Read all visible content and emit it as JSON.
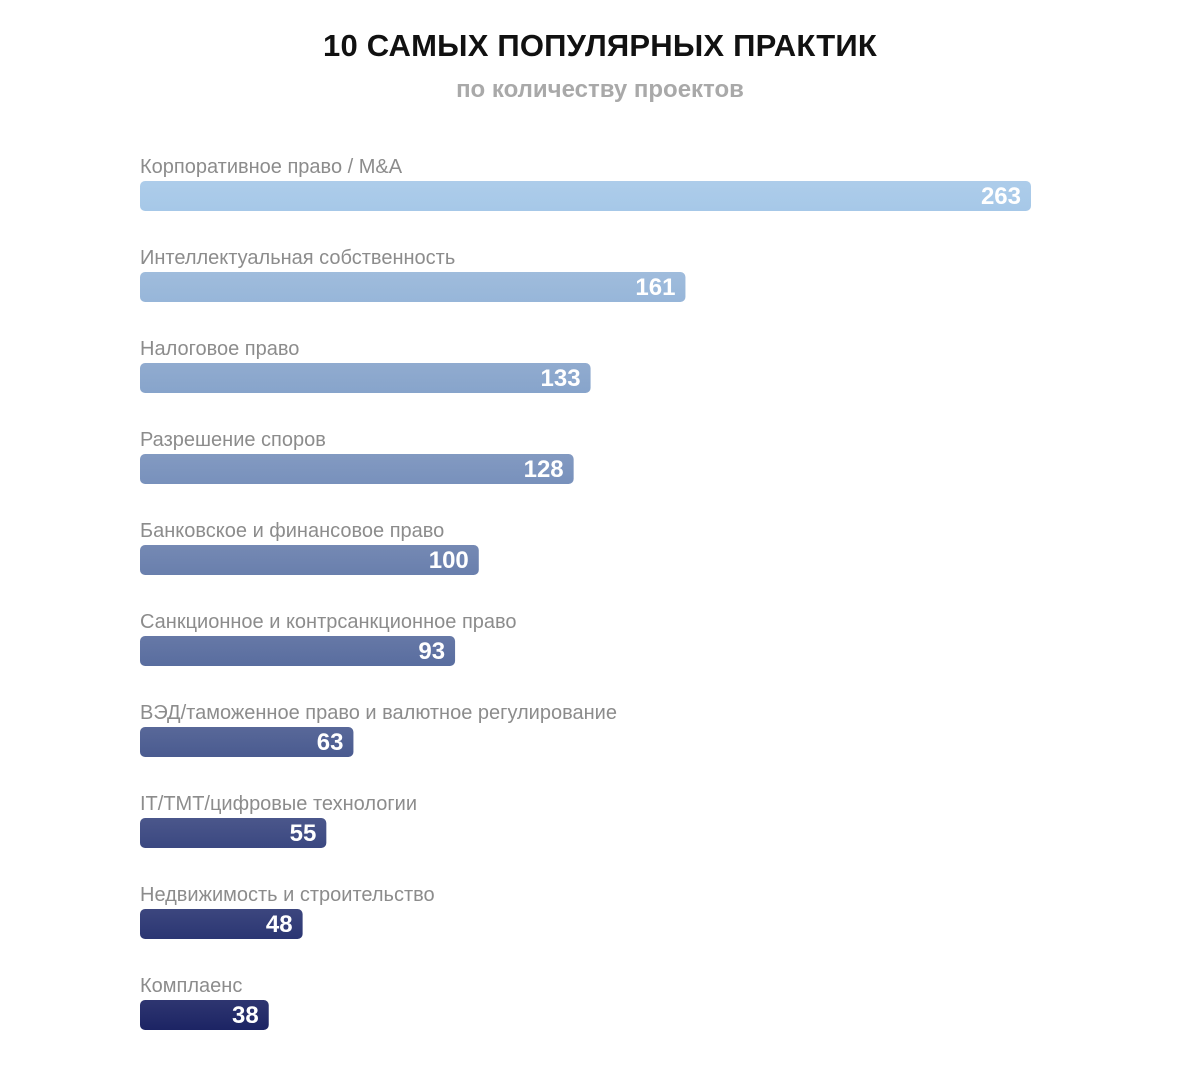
{
  "chart_data": {
    "type": "bar",
    "orientation": "horizontal",
    "title": "10 САМЫХ ПОПУЛЯРНЫХ ПРАКТИК",
    "subtitle": "по количеству проектов",
    "categories": [
      "Корпоративное право / M&A",
      "Интеллектуальная собственность",
      "Налоговое право",
      "Разрешение споров",
      "Банковское и финансовое право",
      "Санкционное и контрсанкционное право",
      "ВЭД/таможенное право и валютное регулирование",
      "IT/TMT/цифровые технологии",
      "Недвижимость и строительство",
      "Комплаенс"
    ],
    "values": [
      263,
      161,
      133,
      128,
      100,
      93,
      63,
      55,
      48,
      38
    ],
    "value_labels": [
      "263",
      "161",
      "133",
      "128",
      "100",
      "93",
      "63",
      "55",
      "48",
      "38"
    ],
    "xlim": [
      0,
      263
    ],
    "grid": false,
    "legend": "none",
    "colors": {
      "bar_start": "#a6c8e8",
      "bar_end": "#1c2464",
      "label": "#8c8c8c",
      "title": "#111111",
      "subtitle": "#a9a9a9"
    }
  }
}
